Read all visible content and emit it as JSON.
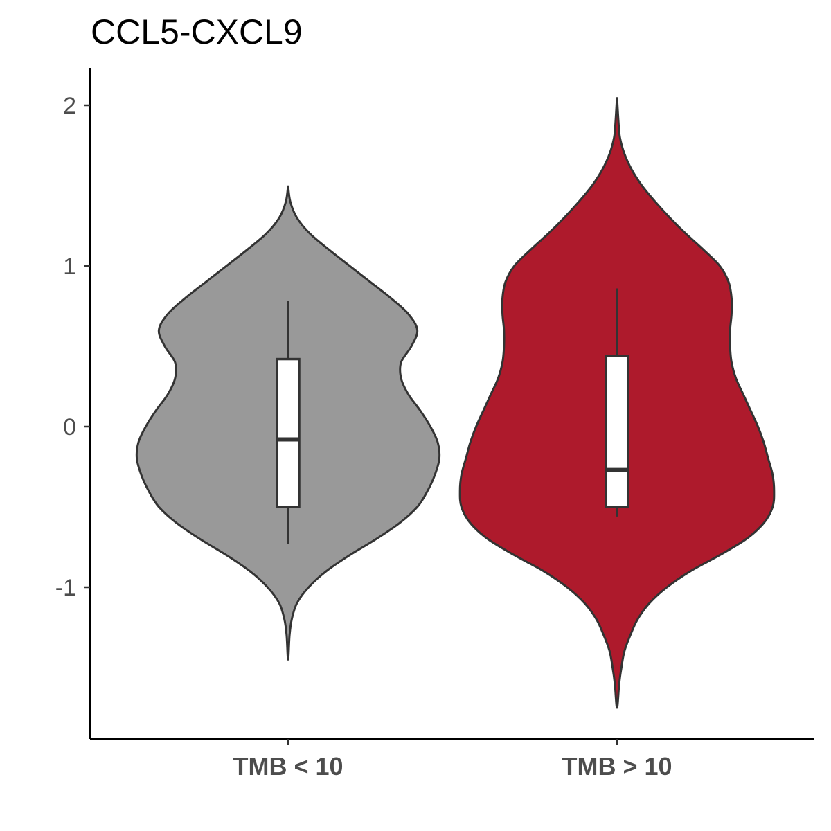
{
  "chart_data": {
    "type": "violin",
    "title": "CCL5-CXCL9",
    "xlabel": "",
    "ylabel": "",
    "ylim": [
      -2.1,
      2.25
    ],
    "yticks": [
      -1,
      0,
      1,
      2
    ],
    "ytick_labels": [
      "-1",
      "0",
      "1",
      "2"
    ],
    "categories": [
      "TMB < 10",
      "TMB > 10"
    ],
    "grid": false,
    "legend": "none",
    "series": [
      {
        "category": "TMB < 10",
        "color": "#999999",
        "box": {
          "whisker_low": -0.73,
          "q1": -0.5,
          "median": -0.08,
          "q3": 0.42,
          "whisker_high": 0.78
        },
        "violin_range": [
          -1.45,
          1.5
        ],
        "density": [
          [
            1.5,
            0.0
          ],
          [
            1.4,
            0.015
          ],
          [
            1.3,
            0.06
          ],
          [
            1.2,
            0.15
          ],
          [
            1.1,
            0.28
          ],
          [
            1.0,
            0.42
          ],
          [
            0.9,
            0.56
          ],
          [
            0.8,
            0.7
          ],
          [
            0.7,
            0.82
          ],
          [
            0.6,
            0.88
          ],
          [
            0.5,
            0.84
          ],
          [
            0.4,
            0.77
          ],
          [
            0.3,
            0.77
          ],
          [
            0.2,
            0.82
          ],
          [
            0.1,
            0.9
          ],
          [
            0.0,
            0.97
          ],
          [
            -0.1,
            1.02
          ],
          [
            -0.2,
            1.03
          ],
          [
            -0.3,
            1.0
          ],
          [
            -0.4,
            0.95
          ],
          [
            -0.5,
            0.88
          ],
          [
            -0.6,
            0.76
          ],
          [
            -0.7,
            0.6
          ],
          [
            -0.8,
            0.42
          ],
          [
            -0.9,
            0.26
          ],
          [
            -1.0,
            0.14
          ],
          [
            -1.1,
            0.06
          ],
          [
            -1.2,
            0.025
          ],
          [
            -1.3,
            0.01
          ],
          [
            -1.45,
            0.0
          ]
        ]
      },
      {
        "category": "TMB > 10",
        "color": "#ae1a2c",
        "box": {
          "whisker_low": -0.56,
          "q1": -0.5,
          "median": -0.27,
          "q3": 0.44,
          "whisker_high": 0.86
        },
        "violin_range": [
          -1.75,
          2.05
        ],
        "density": [
          [
            2.05,
            0.0
          ],
          [
            1.9,
            0.01
          ],
          [
            1.8,
            0.02
          ],
          [
            1.7,
            0.05
          ],
          [
            1.6,
            0.1
          ],
          [
            1.5,
            0.17
          ],
          [
            1.4,
            0.26
          ],
          [
            1.3,
            0.36
          ],
          [
            1.2,
            0.47
          ],
          [
            1.1,
            0.59
          ],
          [
            1.0,
            0.7
          ],
          [
            0.9,
            0.76
          ],
          [
            0.8,
            0.78
          ],
          [
            0.7,
            0.78
          ],
          [
            0.6,
            0.77
          ],
          [
            0.5,
            0.77
          ],
          [
            0.4,
            0.78
          ],
          [
            0.3,
            0.81
          ],
          [
            0.2,
            0.86
          ],
          [
            0.1,
            0.91
          ],
          [
            0.0,
            0.96
          ],
          [
            -0.1,
            1.0
          ],
          [
            -0.2,
            1.03
          ],
          [
            -0.3,
            1.06
          ],
          [
            -0.4,
            1.07
          ],
          [
            -0.5,
            1.06
          ],
          [
            -0.6,
            1.0
          ],
          [
            -0.7,
            0.88
          ],
          [
            -0.8,
            0.7
          ],
          [
            -0.9,
            0.5
          ],
          [
            -1.0,
            0.34
          ],
          [
            -1.1,
            0.22
          ],
          [
            -1.2,
            0.14
          ],
          [
            -1.3,
            0.09
          ],
          [
            -1.4,
            0.05
          ],
          [
            -1.5,
            0.03
          ],
          [
            -1.6,
            0.015
          ],
          [
            -1.75,
            0.0
          ]
        ]
      }
    ]
  }
}
